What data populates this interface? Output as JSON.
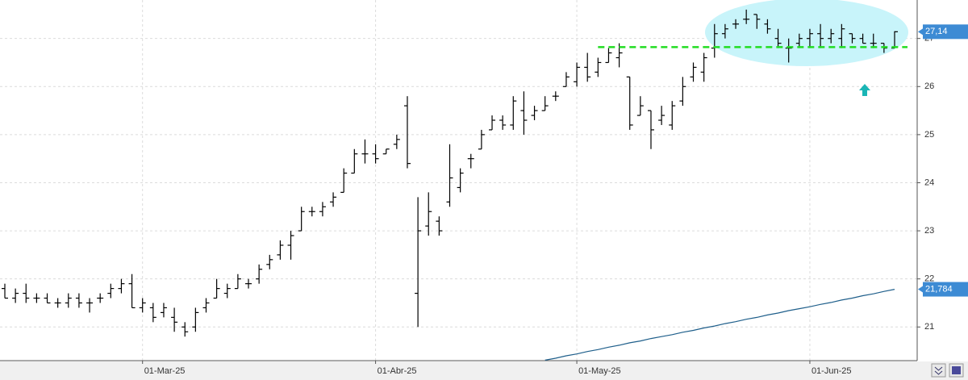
{
  "chart_data": {
    "type": "ohlc",
    "categories": [
      null,
      null,
      null,
      null,
      null,
      null,
      null,
      null,
      null,
      null,
      null,
      null,
      null,
      "01-Mar-25",
      null,
      null,
      null,
      null,
      null,
      null,
      null,
      null,
      null,
      null,
      null,
      null,
      null,
      null,
      null,
      null,
      null,
      null,
      null,
      null,
      null,
      "01-Abr-25",
      null,
      null,
      null,
      null,
      null,
      null,
      null,
      null,
      null,
      null,
      null,
      null,
      null,
      null,
      null,
      null,
      null,
      null,
      "01-May-25",
      null,
      null,
      null,
      null,
      null,
      null,
      null,
      null,
      null,
      null,
      null,
      null,
      null,
      null,
      null,
      null,
      null,
      null,
      null,
      null,
      null,
      "01-Jun-25",
      null,
      null,
      null,
      null,
      null,
      null,
      null,
      null
    ],
    "ohlc": {
      "color": "#000000",
      "open": [
        21.8,
        21.6,
        21.7,
        21.6,
        21.6,
        21.5,
        21.5,
        21.6,
        21.5,
        21.6,
        21.7,
        21.8,
        21.9,
        21.4,
        21.4,
        21.3,
        21.2,
        21.0,
        21.0,
        21.4,
        21.6,
        21.7,
        21.8,
        21.9,
        22.0,
        22.3,
        22.5,
        22.7,
        23.0,
        23.4,
        23.4,
        23.6,
        23.8,
        24.2,
        24.6,
        24.6,
        24.6,
        24.8,
        25.6,
        21.7,
        23.1,
        23.2,
        23.6,
        23.9,
        24.5,
        24.7,
        25.1,
        25.3,
        25.2,
        25.5,
        25.4,
        25.5,
        25.8,
        26.0,
        26.1,
        26.4,
        26.3,
        26.5,
        26.6,
        26.2,
        25.4,
        25.5,
        25.3,
        25.2,
        25.7,
        26.2,
        26.3,
        26.8,
        27.1,
        27.3,
        27.4,
        27.5,
        27.3,
        27.0,
        26.8,
        26.9,
        27.0,
        27.1,
        27.0,
        27.0,
        27.1,
        27.0,
        26.9,
        26.9,
        26.8
      ],
      "high": [
        21.9,
        21.8,
        21.9,
        21.7,
        21.7,
        21.6,
        21.7,
        21.7,
        21.6,
        21.7,
        21.9,
        22.0,
        22.1,
        21.6,
        21.5,
        21.5,
        21.4,
        21.1,
        21.4,
        21.6,
        22.0,
        21.9,
        22.1,
        22.0,
        22.3,
        22.5,
        22.8,
        23.0,
        23.5,
        23.5,
        23.6,
        23.8,
        24.3,
        24.7,
        24.9,
        24.8,
        24.7,
        25.0,
        25.8,
        23.7,
        23.8,
        23.3,
        24.8,
        24.3,
        24.6,
        25.1,
        25.4,
        25.4,
        25.8,
        25.9,
        25.6,
        25.8,
        25.9,
        26.3,
        26.5,
        26.7,
        26.6,
        26.8,
        26.9,
        26.2,
        25.8,
        25.5,
        25.6,
        25.7,
        26.2,
        26.5,
        26.7,
        27.3,
        27.3,
        27.4,
        27.6,
        27.5,
        27.4,
        27.2,
        27.0,
        27.1,
        27.2,
        27.3,
        27.2,
        27.3,
        27.1,
        27.1,
        27.1,
        26.9,
        27.15
      ],
      "low": [
        21.6,
        21.5,
        21.5,
        21.5,
        21.5,
        21.4,
        21.4,
        21.4,
        21.3,
        21.5,
        21.6,
        21.7,
        21.4,
        21.3,
        21.1,
        21.2,
        20.9,
        20.8,
        20.9,
        21.3,
        21.6,
        21.6,
        21.8,
        21.8,
        21.9,
        22.2,
        22.4,
        22.4,
        23.0,
        23.3,
        23.3,
        23.5,
        23.8,
        24.2,
        24.4,
        24.4,
        24.6,
        24.7,
        24.3,
        21.0,
        22.9,
        22.9,
        23.5,
        23.8,
        24.3,
        24.7,
        25.1,
        25.1,
        25.1,
        25.0,
        25.3,
        25.5,
        25.7,
        26.0,
        26.0,
        26.1,
        26.2,
        26.5,
        26.4,
        25.1,
        25.4,
        24.7,
        25.2,
        25.1,
        25.6,
        26.1,
        26.1,
        26.6,
        27.0,
        27.2,
        27.3,
        27.2,
        27.1,
        26.8,
        26.5,
        26.8,
        26.8,
        26.8,
        26.9,
        26.8,
        26.9,
        26.9,
        26.8,
        26.7,
        26.8
      ],
      "close": [
        21.6,
        21.7,
        21.6,
        21.6,
        21.5,
        21.5,
        21.6,
        21.5,
        21.5,
        21.6,
        21.8,
        21.9,
        21.4,
        21.5,
        21.2,
        21.4,
        21.1,
        20.9,
        21.3,
        21.5,
        21.8,
        21.8,
        22.0,
        21.9,
        22.2,
        22.4,
        22.7,
        22.9,
        23.4,
        23.4,
        23.5,
        23.7,
        24.2,
        24.6,
        24.6,
        24.5,
        24.7,
        24.9,
        24.4,
        23.0,
        23.4,
        23.0,
        24.1,
        24.2,
        24.5,
        25.0,
        25.3,
        25.2,
        25.7,
        25.3,
        25.5,
        25.6,
        25.8,
        26.2,
        26.4,
        26.2,
        26.5,
        26.7,
        26.7,
        25.2,
        25.6,
        25.1,
        25.4,
        25.6,
        26.0,
        26.4,
        26.6,
        27.1,
        27.2,
        27.3,
        27.4,
        27.4,
        27.2,
        26.9,
        26.8,
        27.0,
        27.1,
        27.0,
        27.1,
        27.2,
        27.0,
        26.9,
        26.9,
        26.8,
        27.14
      ]
    },
    "series": [
      {
        "color": "#1f5f8b",
        "values": [
          null,
          null,
          null,
          null,
          null,
          null,
          null,
          null,
          null,
          null,
          null,
          null,
          null,
          null,
          null,
          null,
          null,
          null,
          null,
          null,
          null,
          null,
          null,
          null,
          null,
          null,
          null,
          null,
          null,
          null,
          null,
          null,
          null,
          null,
          null,
          null,
          null,
          null,
          null,
          null,
          null,
          null,
          null,
          null,
          null,
          null,
          null,
          null,
          null,
          null,
          null,
          20.31,
          20.35,
          20.4,
          20.44,
          20.49,
          20.53,
          20.58,
          20.62,
          20.67,
          20.71,
          20.76,
          20.8,
          20.84,
          20.89,
          20.93,
          20.98,
          21.02,
          21.07,
          21.11,
          21.16,
          21.2,
          21.25,
          21.29,
          21.34,
          21.38,
          21.42,
          21.47,
          21.51,
          21.56,
          21.6,
          21.65,
          21.69,
          21.74,
          21.784
        ]
      }
    ],
    "hlines": [
      {
        "value": 26.82,
        "from": 56,
        "color": "#22dd22"
      }
    ],
    "markers": [
      {
        "value": 27.14,
        "label": "27,14",
        "color": "#3d8bd4"
      },
      {
        "value": 21.784,
        "label": "21,784",
        "color": "#3d8bd4"
      }
    ],
    "ylim": [
      20.3,
      27.8
    ],
    "yticks": [
      21,
      22,
      23,
      24,
      25,
      26,
      27
    ],
    "grid": true
  }
}
